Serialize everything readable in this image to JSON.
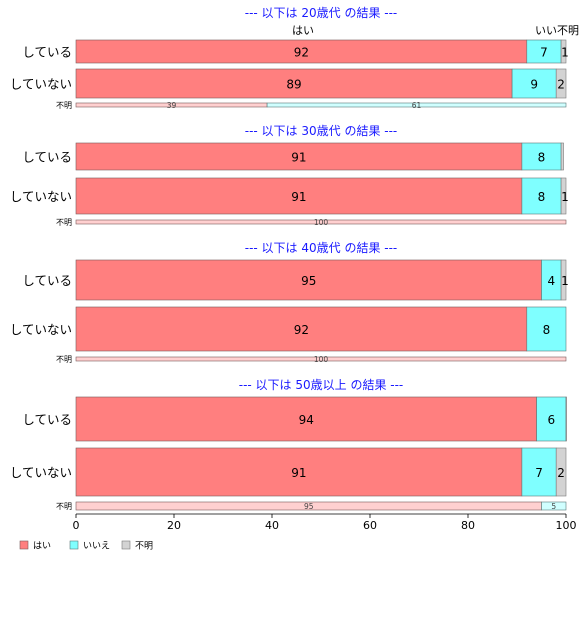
{
  "chart_data": {
    "type": "bar",
    "orientation": "horizontal",
    "stacked": true,
    "xlim": [
      0,
      100
    ],
    "x_ticks": [
      "0",
      "20",
      "40",
      "60",
      "80",
      "100"
    ],
    "legend": {
      "position": "bottom-left",
      "items": [
        {
          "label": "はい",
          "color": "#ff7f7f"
        },
        {
          "label": "いいえ",
          "color": "#7fffff"
        },
        {
          "label": "不明",
          "color": "#d3d3d3"
        }
      ]
    },
    "series_names": [
      "はい",
      "いいえ",
      "不明"
    ],
    "header_labels": {
      "yes": "はい",
      "no": "いい",
      "unknown": "不明"
    },
    "panels": [
      {
        "title": "--- 以下は 20歳代 の結果 ---",
        "categories": [
          "している",
          "していない",
          "不明"
        ],
        "rows": [
          {
            "label": "している",
            "values": [
              92,
              7,
              1
            ],
            "labels": [
              "92",
              "7",
              "1"
            ]
          },
          {
            "label": "していない",
            "values": [
              89,
              9,
              2
            ],
            "labels": [
              "89",
              "9",
              "2"
            ]
          },
          {
            "label": "不明",
            "values": [
              39,
              61,
              0
            ],
            "labels": [
              "39",
              "61",
              ""
            ]
          }
        ]
      },
      {
        "title": "--- 以下は 30歳代 の結果 ---",
        "categories": [
          "している",
          "していない",
          "不明"
        ],
        "rows": [
          {
            "label": "している",
            "values": [
              91,
              8,
              0.5
            ],
            "labels": [
              "91",
              "8",
              ""
            ]
          },
          {
            "label": "していない",
            "values": [
              91,
              8,
              1
            ],
            "labels": [
              "91",
              "8",
              "1"
            ]
          },
          {
            "label": "不明",
            "values": [
              100,
              0,
              0
            ],
            "labels": [
              "100",
              "",
              ""
            ]
          }
        ]
      },
      {
        "title": "--- 以下は 40歳代 の結果 ---",
        "categories": [
          "している",
          "していない",
          "不明"
        ],
        "rows": [
          {
            "label": "している",
            "values": [
              95,
              4,
              1
            ],
            "labels": [
              "95",
              "4",
              "1"
            ]
          },
          {
            "label": "していない",
            "values": [
              92,
              8,
              0
            ],
            "labels": [
              "92",
              "8",
              ""
            ]
          },
          {
            "label": "不明",
            "values": [
              100,
              0,
              0
            ],
            "labels": [
              "100",
              "",
              ""
            ]
          }
        ]
      },
      {
        "title": "--- 以下は 50歳以上 の結果 ---",
        "categories": [
          "している",
          "していない",
          "不明"
        ],
        "rows": [
          {
            "label": "している",
            "values": [
              94,
              6,
              0.3
            ],
            "labels": [
              "94",
              "6",
              ""
            ]
          },
          {
            "label": "していない",
            "values": [
              91,
              7,
              2
            ],
            "labels": [
              "91",
              "7",
              "2"
            ]
          },
          {
            "label": "不明",
            "values": [
              95,
              5,
              0
            ],
            "labels": [
              "95",
              "5",
              ""
            ]
          }
        ]
      }
    ]
  }
}
